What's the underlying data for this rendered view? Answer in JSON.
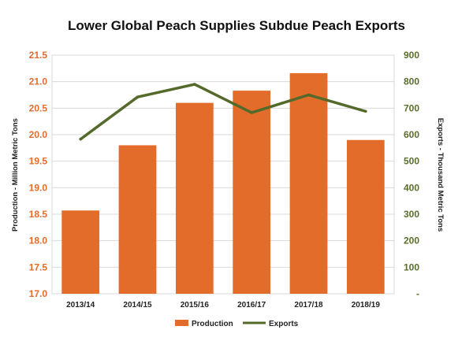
{
  "chart_data": {
    "type": "bar",
    "title": "Lower Global Peach Supplies Subdue Peach Exports",
    "categories": [
      "2013/14",
      "2014/15",
      "2015/16",
      "2016/17",
      "2017/18",
      "2018/19"
    ],
    "ylabel_left": "Production  - Million Metric Tons",
    "ylabel_right": "Exports  - Thousand Metric Tons",
    "ylim_left": [
      17.0,
      21.5
    ],
    "ylim_right": [
      0,
      900
    ],
    "yticks_left": [
      "17.0",
      "17.5",
      "18.0",
      "18.5",
      "19.0",
      "19.5",
      "20.0",
      "20.5",
      "21.0",
      "21.5"
    ],
    "yticks_right": [
      "-",
      "100",
      "200",
      "300",
      "400",
      "500",
      "600",
      "700",
      "800",
      "900"
    ],
    "grid": true,
    "legend_position": "bottom",
    "series": [
      {
        "name": "Production",
        "type": "bar",
        "axis": "left",
        "color": "#e36c2a",
        "values": [
          18.57,
          19.8,
          20.6,
          20.83,
          21.16,
          19.9
        ]
      },
      {
        "name": "Exports",
        "type": "line",
        "axis": "right",
        "color": "#546a2b",
        "values": [
          583,
          742,
          790,
          683,
          750,
          688
        ]
      }
    ]
  }
}
